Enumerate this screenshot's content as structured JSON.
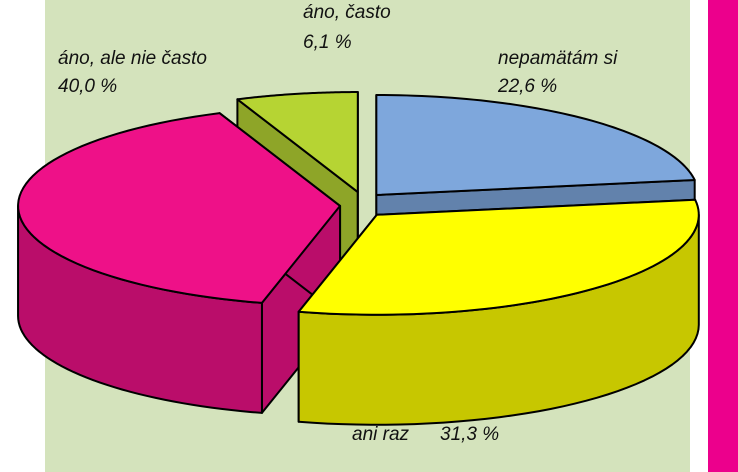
{
  "chart_data": {
    "type": "pie",
    "categories": [
      "nepamätám si",
      "ani raz",
      "áno, ale nie často",
      "áno, často"
    ],
    "values": [
      22.6,
      31.3,
      40.0,
      6.1
    ],
    "value_labels": [
      "22,6 %",
      "31,3 %",
      "40,0 %",
      "6,1 %"
    ],
    "colors": [
      "#7ea7dc",
      "#ffff00",
      "#ee1188",
      "#b6d433"
    ]
  }
}
